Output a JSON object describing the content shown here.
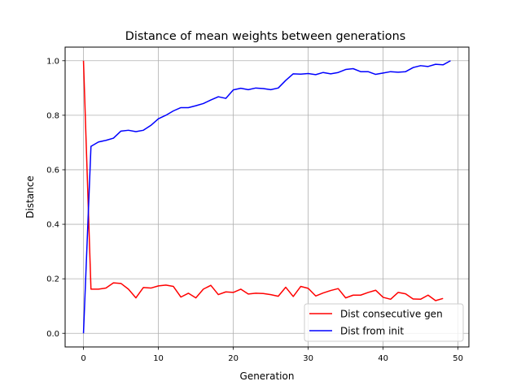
{
  "chart_data": {
    "type": "line",
    "title": "Distance of mean weights between generations",
    "xlabel": "Generation",
    "ylabel": "Distance",
    "xlim": [
      -2.45,
      51.45
    ],
    "ylim": [
      -0.05,
      1.05
    ],
    "xticks": [
      0,
      10,
      20,
      30,
      40,
      50
    ],
    "yticks": [
      0.0,
      0.2,
      0.4,
      0.6,
      0.8,
      1.0
    ],
    "xtick_labels": [
      "0",
      "10",
      "20",
      "30",
      "40",
      "50"
    ],
    "ytick_labels": [
      "0.0",
      "0.2",
      "0.4",
      "0.6",
      "0.8",
      "1.0"
    ],
    "grid": true,
    "legend_position": "lower-right",
    "series": [
      {
        "name": "Dist consecutive gen",
        "color": "#ff0000",
        "x": [
          0,
          1,
          2,
          3,
          4,
          5,
          6,
          7,
          8,
          9,
          10,
          11,
          12,
          13,
          14,
          15,
          16,
          17,
          18,
          19,
          20,
          21,
          22,
          23,
          24,
          25,
          26,
          27,
          28,
          29,
          30,
          31,
          32,
          33,
          34,
          35,
          36,
          37,
          38,
          39,
          40,
          41,
          42,
          43,
          44,
          45,
          46,
          47,
          48
        ],
        "values": [
          1.0,
          0.162,
          0.162,
          0.166,
          0.185,
          0.183,
          0.162,
          0.13,
          0.168,
          0.166,
          0.174,
          0.177,
          0.172,
          0.133,
          0.147,
          0.13,
          0.162,
          0.176,
          0.142,
          0.152,
          0.15,
          0.162,
          0.144,
          0.147,
          0.146,
          0.142,
          0.136,
          0.169,
          0.135,
          0.172,
          0.165,
          0.137,
          0.148,
          0.157,
          0.164,
          0.13,
          0.14,
          0.14,
          0.15,
          0.158,
          0.132,
          0.125,
          0.15,
          0.145,
          0.126,
          0.125,
          0.14,
          0.12,
          0.128
        ]
      },
      {
        "name": "Dist from init",
        "color": "#0000ff",
        "x": [
          0,
          1,
          2,
          3,
          4,
          5,
          6,
          7,
          8,
          9,
          10,
          11,
          12,
          13,
          14,
          15,
          16,
          17,
          18,
          19,
          20,
          21,
          22,
          23,
          24,
          25,
          26,
          27,
          28,
          29,
          30,
          31,
          32,
          33,
          34,
          35,
          36,
          37,
          38,
          39,
          40,
          41,
          42,
          43,
          44,
          45,
          46,
          47,
          48,
          49
        ],
        "values": [
          0.0,
          0.686,
          0.702,
          0.708,
          0.716,
          0.742,
          0.745,
          0.74,
          0.745,
          0.763,
          0.787,
          0.8,
          0.816,
          0.828,
          0.828,
          0.835,
          0.843,
          0.856,
          0.868,
          0.862,
          0.893,
          0.899,
          0.894,
          0.9,
          0.898,
          0.894,
          0.9,
          0.928,
          0.952,
          0.951,
          0.953,
          0.949,
          0.957,
          0.952,
          0.957,
          0.968,
          0.971,
          0.96,
          0.96,
          0.95,
          0.955,
          0.96,
          0.958,
          0.96,
          0.975,
          0.982,
          0.979,
          0.987,
          0.985,
          1.0
        ]
      }
    ]
  }
}
